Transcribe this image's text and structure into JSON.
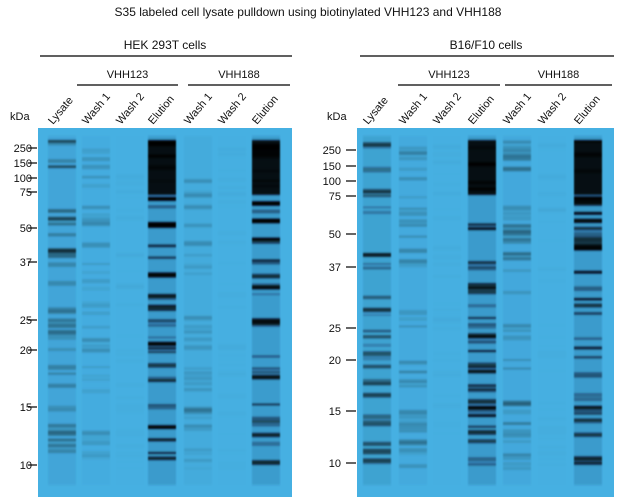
{
  "title": "S35 labeled cell lysate pulldown using biotinylated VHH123 and VHH188",
  "panels": [
    {
      "cells": "HEK 293T cells",
      "groups": [
        "VHH123",
        "VHH188"
      ],
      "lanes": [
        "Lysate",
        "Wash 1",
        "Wash 2",
        "Elution",
        "Wash 1",
        "Wash 2",
        "Elution"
      ],
      "unit": "kDa",
      "markers": [
        "250",
        "150",
        "100",
        "75",
        "50",
        "37",
        "25",
        "20",
        "15",
        "10"
      ]
    },
    {
      "cells": "B16/F10 cells",
      "groups": [
        "VHH123",
        "VHH188"
      ],
      "lanes": [
        "Lysate",
        "Wash 1",
        "Wash 2",
        "Elution",
        "Wash 1",
        "Wash 2",
        "Elution"
      ],
      "unit": "kDa",
      "markers": [
        "250",
        "150",
        "100",
        "75",
        "50",
        "37",
        "25",
        "20",
        "15",
        "10"
      ]
    }
  ]
}
